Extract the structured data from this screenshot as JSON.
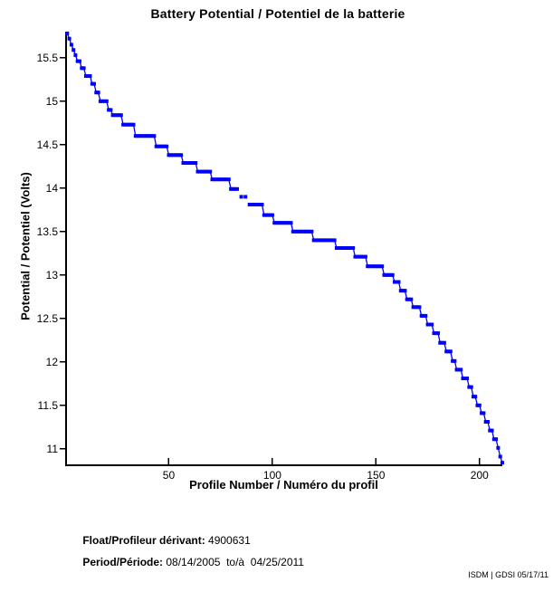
{
  "page": {
    "background": "#ffffff",
    "text_color": "#000000"
  },
  "chart_data": {
    "type": "line",
    "title": "Battery Potential / Potentiel de la batterie",
    "xlabel": "Profile Number / Numéro du profil",
    "ylabel": "Potential / Potentiel (Volts)",
    "xlim": [
      0,
      211
    ],
    "ylim": [
      10.8,
      15.8
    ],
    "xticks": [
      50,
      100,
      150,
      200
    ],
    "yticks": [
      11,
      11.5,
      12,
      12.5,
      13,
      13.5,
      14,
      14.5,
      15,
      15.5
    ],
    "grid": false,
    "legend_position": "none",
    "axis_style": "left-bottom-spines-only",
    "series": [
      {
        "name": "battery-potential-volts-vs-profile-number",
        "color": "#0000ff",
        "marker": "square",
        "line_style": "solid",
        "steps_profile_from_to_volts": [
          [
            1,
            1,
            15.78
          ],
          [
            2,
            2,
            15.72
          ],
          [
            3,
            3,
            15.65
          ],
          [
            4,
            4,
            15.59
          ],
          [
            5,
            5,
            15.53
          ],
          [
            6,
            7,
            15.46
          ],
          [
            8,
            9,
            15.38
          ],
          [
            10,
            12,
            15.29
          ],
          [
            13,
            14,
            15.2
          ],
          [
            15,
            16,
            15.1
          ],
          [
            17,
            20,
            15.0
          ],
          [
            21,
            22,
            14.9
          ],
          [
            23,
            27,
            14.84
          ],
          [
            28,
            33,
            14.73
          ],
          [
            34,
            43,
            14.6
          ],
          [
            44,
            49,
            14.48
          ],
          [
            50,
            56,
            14.38
          ],
          [
            57,
            63,
            14.29
          ],
          [
            64,
            70,
            14.19
          ],
          [
            71,
            79,
            14.1
          ],
          [
            80,
            83,
            13.99
          ],
          [
            84,
            88,
            13.9
          ],
          [
            89,
            95,
            13.81
          ],
          [
            96,
            100,
            13.69
          ],
          [
            101,
            109,
            13.6
          ],
          [
            110,
            119,
            13.5
          ],
          [
            120,
            130,
            13.4
          ],
          [
            131,
            139,
            13.31
          ],
          [
            140,
            145,
            13.21
          ],
          [
            146,
            153,
            13.1
          ],
          [
            154,
            158,
            13.0
          ],
          [
            159,
            161,
            12.92
          ],
          [
            162,
            164,
            12.82
          ],
          [
            165,
            167,
            12.72
          ],
          [
            168,
            171,
            12.63
          ],
          [
            172,
            174,
            12.53
          ],
          [
            175,
            177,
            12.43
          ],
          [
            178,
            180,
            12.33
          ],
          [
            181,
            183,
            12.22
          ],
          [
            184,
            186,
            12.12
          ],
          [
            187,
            188,
            12.01
          ],
          [
            189,
            191,
            11.91
          ],
          [
            192,
            194,
            11.81
          ],
          [
            195,
            196,
            11.71
          ],
          [
            197,
            198,
            11.6
          ],
          [
            199,
            200,
            11.5
          ],
          [
            201,
            202,
            11.41
          ],
          [
            203,
            204,
            11.31
          ],
          [
            205,
            206,
            11.21
          ],
          [
            207,
            208,
            11.11
          ],
          [
            209,
            209,
            11.01
          ],
          [
            210,
            210,
            10.91
          ],
          [
            211,
            211,
            10.84
          ]
        ],
        "missing_profiles": [
          84,
          86,
          88
        ]
      }
    ]
  },
  "footer": {
    "float_label": "Float/Profileur dérivant:",
    "float_value": " 4900631",
    "period_label": "Period/Période:",
    "period_value": " 08/14/2005  to/à  04/25/2011"
  },
  "corner_note": "ISDM | GDSI 05/17/11"
}
